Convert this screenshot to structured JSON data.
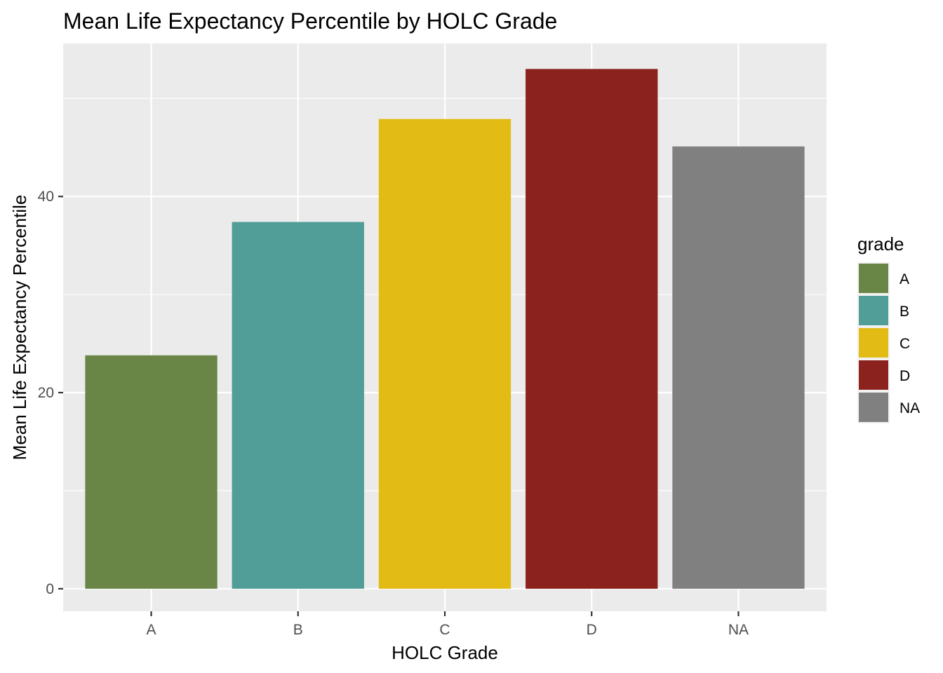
{
  "chart_data": {
    "type": "bar",
    "title": "Mean Life Expectancy Percentile by HOLC Grade",
    "xlabel": "HOLC Grade",
    "ylabel": "Mean Life Expectancy Percentile",
    "categories": [
      "A",
      "B",
      "C",
      "D",
      "NA"
    ],
    "values": [
      23.8,
      37.4,
      47.9,
      53.0,
      45.1
    ],
    "colors": [
      "#6a8646",
      "#519e98",
      "#e2bb14",
      "#8b221d",
      "#808080"
    ],
    "ylim": [
      -2.3,
      55.6
    ],
    "yticks": [
      0,
      20,
      40
    ],
    "ytick_labels": [
      "0",
      "20",
      "40"
    ],
    "grid": true,
    "panel_background": "#ebebeb",
    "legend": {
      "title": "grade",
      "position": "right",
      "entries": [
        "A",
        "B",
        "C",
        "D",
        "NA"
      ]
    }
  }
}
